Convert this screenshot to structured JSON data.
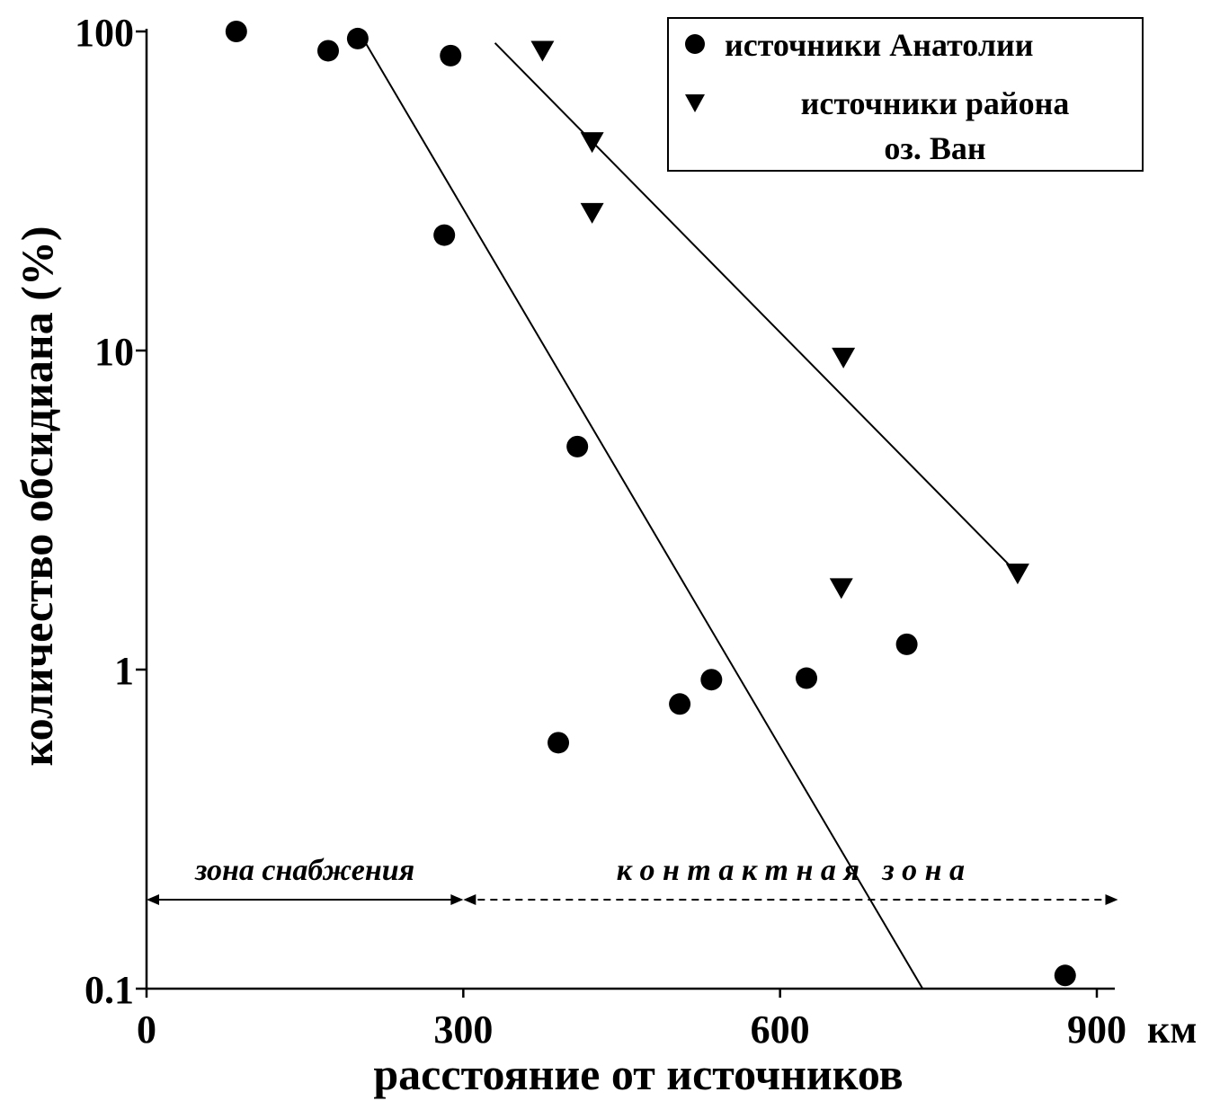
{
  "chart_data": {
    "type": "scatter",
    "x_scale": "linear",
    "y_scale": "log",
    "xlim": [
      0,
      900
    ],
    "ylim": [
      0.1,
      100
    ],
    "xticks": [
      0,
      300,
      600,
      900
    ],
    "xtick_labels": [
      "0",
      "300",
      "600",
      "900"
    ],
    "x_unit": "км",
    "yticks": [
      0.1,
      1,
      10,
      100
    ],
    "ytick_labels": [
      "0.1",
      "1",
      "10",
      "100"
    ],
    "xlabel": "расстояние от источников",
    "ylabel": "количество обсидиана (%)",
    "grid": false,
    "legend_position": "top-right",
    "series": [
      {
        "name": "источники Анатолии",
        "marker": "circle",
        "color": "#000000",
        "points": [
          {
            "x": 85,
            "y": 100
          },
          {
            "x": 172,
            "y": 87
          },
          {
            "x": 200,
            "y": 95
          },
          {
            "x": 288,
            "y": 84
          },
          {
            "x": 282,
            "y": 23
          },
          {
            "x": 408,
            "y": 5
          },
          {
            "x": 390,
            "y": 0.59
          },
          {
            "x": 505,
            "y": 0.78
          },
          {
            "x": 535,
            "y": 0.93
          },
          {
            "x": 625,
            "y": 0.94
          },
          {
            "x": 720,
            "y": 1.2
          },
          {
            "x": 870,
            "y": 0.11
          }
        ],
        "trend_line": [
          {
            "x": 205,
            "y": 95
          },
          {
            "x": 735,
            "y": 0.1
          }
        ]
      },
      {
        "name_lines": [
          "источники района",
          "оз. Ван"
        ],
        "marker": "triangle-down",
        "color": "#000000",
        "points": [
          {
            "x": 375,
            "y": 87
          },
          {
            "x": 422,
            "y": 45
          },
          {
            "x": 422,
            "y": 27
          },
          {
            "x": 660,
            "y": 9.5
          },
          {
            "x": 658,
            "y": 1.8
          },
          {
            "x": 825,
            "y": 2
          }
        ],
        "trend_line": [
          {
            "x": 330,
            "y": 92
          },
          {
            "x": 825,
            "y": 2
          }
        ]
      }
    ],
    "annotations": [
      {
        "text": "зона снабжения",
        "x_from": 0,
        "x_to": 300,
        "y": 0.19,
        "line_style": "solid"
      },
      {
        "text": "к о н т а к т н а я   з о н а",
        "x_from": 300,
        "x_to": 920,
        "y": 0.19,
        "line_style": "dashed"
      }
    ]
  }
}
